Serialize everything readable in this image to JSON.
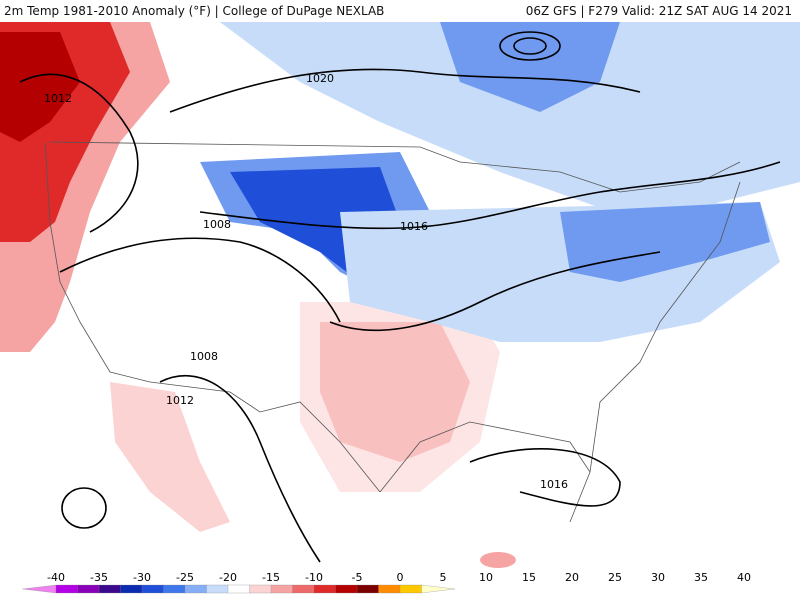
{
  "header": {
    "title": "2m Temp 1981-2010 Anomaly (°F) | College of DuPage NEXLAB",
    "run": "06Z GFS | F279 Valid: 21Z SAT AUG 14 2021"
  },
  "isobar_labels": [
    "1012",
    "1020",
    "1008",
    "1016",
    "1008",
    "1012",
    "1016"
  ],
  "colorbar": {
    "ticks": [
      "-40",
      "-35",
      "-30",
      "-25",
      "-20",
      "-15",
      "-10",
      "-5",
      "0",
      "5",
      "10",
      "15",
      "20",
      "25",
      "30",
      "35",
      "40"
    ],
    "colors": [
      "#ee82ee",
      "#b400e6",
      "#8a00b8",
      "#3b0a8c",
      "#0b2bb0",
      "#1f4ed8",
      "#3f78ea",
      "#86aef5",
      "#c6dcf9",
      "#ffffff",
      "#fbd3d3",
      "#f6a3a3",
      "#ee6a6a",
      "#e02a2a",
      "#b40000",
      "#7a0000",
      "#ff8c00",
      "#ffc800",
      "#ffffcc"
    ]
  },
  "colors": {
    "cold_strong": "#1f4ed8",
    "cold_mid": "#6f9af0",
    "cold_light": "#c6dcf9",
    "warm_light": "#fbd3d3",
    "warm_mid": "#f6a3a3",
    "warm_strong": "#e02a2a",
    "warm_extreme": "#b40000"
  }
}
